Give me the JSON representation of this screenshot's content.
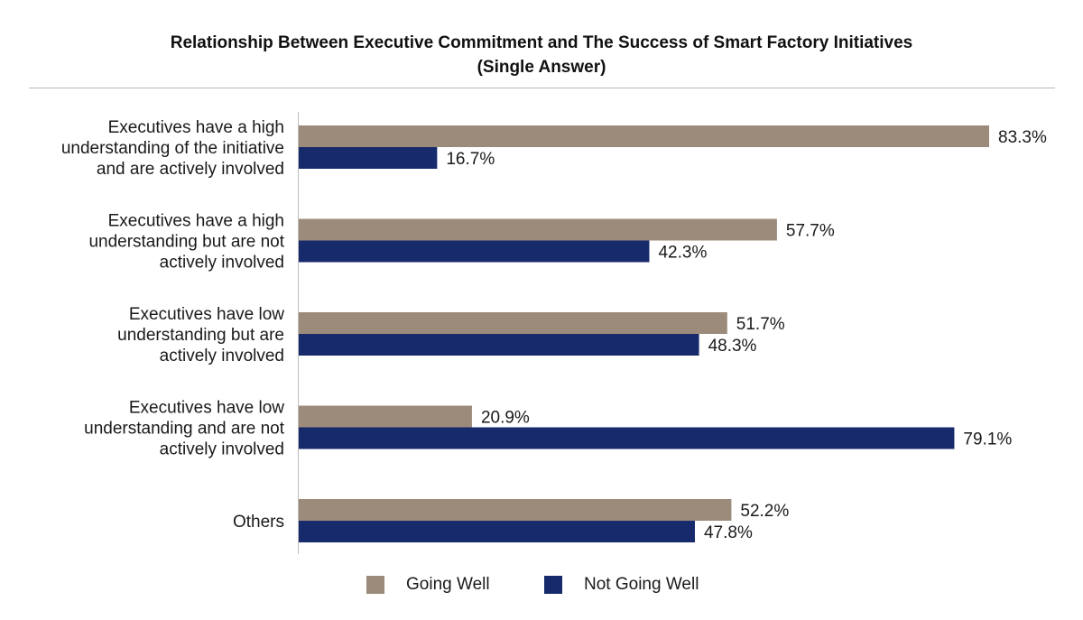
{
  "chart_data": {
    "type": "bar",
    "orientation": "horizontal",
    "title": "Relationship Between Executive Commitment and The Success of Smart Factory Initiatives",
    "subtitle": "(Single Answer)",
    "categories": [
      [
        "Executives have a high",
        "understanding of the initiative",
        "and are actively involved"
      ],
      [
        "Executives have a high",
        "understanding but are not",
        "actively involved"
      ],
      [
        "Executives have low",
        "understanding but are",
        "actively involved"
      ],
      [
        "Executives have low",
        "understanding and are not",
        "actively involved"
      ],
      [
        "Others"
      ]
    ],
    "series": [
      {
        "name": "Going Well",
        "color": "#9c8b7a",
        "values": [
          83.3,
          57.7,
          51.7,
          20.9,
          52.2
        ],
        "labels": [
          "83.3%",
          "57.7%",
          "51.7%",
          "20.9%",
          "52.2%"
        ]
      },
      {
        "name": "Not Going Well",
        "color": "#172a6b",
        "values": [
          16.7,
          42.3,
          48.3,
          79.1,
          47.8
        ],
        "labels": [
          "16.7%",
          "42.3%",
          "48.3%",
          "79.1%",
          "47.8%"
        ]
      }
    ],
    "xlim": [
      0,
      100
    ],
    "grid": false,
    "legend_position": "bottom-center"
  }
}
